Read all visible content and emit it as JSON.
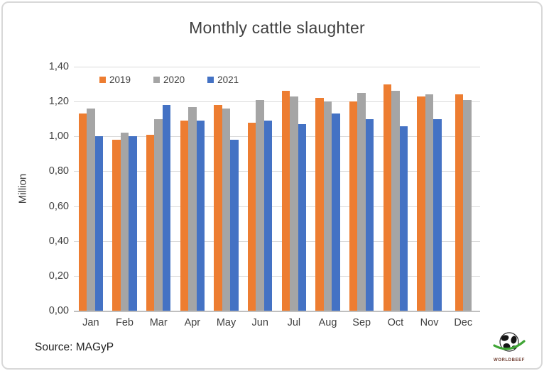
{
  "window": {
    "background": "#FFFFFF",
    "border_color": "#D8D8D8"
  },
  "chart_data": {
    "type": "bar",
    "title": "Monthly cattle slaughter",
    "ylabel": "Million",
    "xlabel": "",
    "categories": [
      "Jan",
      "Feb",
      "Mar",
      "Apr",
      "May",
      "Jun",
      "Jul",
      "Aug",
      "Sep",
      "Oct",
      "Nov",
      "Dec"
    ],
    "series": [
      {
        "name": "2019",
        "color": "#ED7D31",
        "values": [
          1.13,
          0.98,
          1.01,
          1.09,
          1.18,
          1.08,
          1.26,
          1.22,
          1.2,
          1.3,
          1.23,
          1.24
        ]
      },
      {
        "name": "2020",
        "color": "#A5A5A5",
        "values": [
          1.16,
          1.02,
          1.1,
          1.17,
          1.16,
          1.21,
          1.23,
          1.2,
          1.25,
          1.26,
          1.24,
          1.21
        ]
      },
      {
        "name": "2021",
        "color": "#4472C4",
        "values": [
          1.0,
          1.0,
          1.18,
          1.09,
          0.98,
          1.09,
          1.07,
          1.13,
          1.1,
          1.06,
          1.1,
          null
        ]
      }
    ],
    "ylim": [
      0,
      1.4
    ],
    "ytick_step": 0.2,
    "ytick_labels": [
      "0,00",
      "0,20",
      "0,40",
      "0,60",
      "0,80",
      "1,00",
      "1,20",
      "1,40"
    ],
    "grid": true,
    "legend_position": "top-left-inside",
    "gridline_color": "#D9D9D9",
    "axis_line_color": "#BFBFBF"
  },
  "footer": {
    "source_label": "Source: MAGyP"
  },
  "logo": {
    "icon": "globe-icon",
    "text": "WORLDBEEF",
    "swoosh_color": "#3FA535"
  }
}
